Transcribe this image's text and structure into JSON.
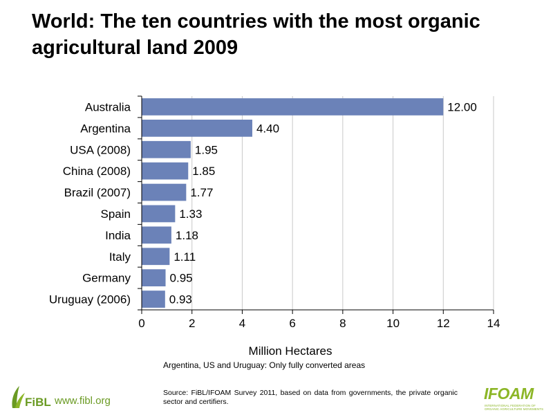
{
  "title": "World: The ten countries with the most organic agricultural land 2009",
  "chart_data": {
    "type": "bar",
    "orientation": "horizontal",
    "title": "World: The ten countries with the most organic agricultural land 2009",
    "categories": [
      "Australia",
      "Argentina",
      "USA (2008)",
      "China (2008)",
      "Brazil (2007)",
      "Spain",
      "India",
      "Italy",
      "Germany",
      "Uruguay (2006)"
    ],
    "values": [
      12.0,
      4.4,
      1.95,
      1.85,
      1.77,
      1.33,
      1.18,
      1.11,
      0.95,
      0.93
    ],
    "value_labels": [
      "12.00",
      "4.40",
      "1.95",
      "1.85",
      "1.77",
      "1.33",
      "1.18",
      "1.11",
      "0.95",
      "0.93"
    ],
    "xlabel": "Million Hectares",
    "ylabel": "",
    "xlim": [
      0,
      14
    ],
    "xticks": [
      0,
      2,
      4,
      6,
      8,
      10,
      12,
      14
    ],
    "grid": true,
    "bar_color": "#6b82b8",
    "grid_color": "#c8c8c8"
  },
  "note": "Argentina, US and Uruguay:  Only fully converted areas",
  "source": "Source: FiBL/IFOAM Survey 2011, based on data from governments, the private organic sector and certifiers.",
  "footer": {
    "fibl_logo_text": "FiBL",
    "fibl_url": "www.fibl.org",
    "ifoam_logo_text": "IFOAM",
    "ifoam_subtitle": "INTERNATIONAL FEDERATION OF ORGANIC AGRICULTURE MOVEMENTS",
    "brand_green": "#6a9a23",
    "ifoam_green": "#8cb627"
  }
}
